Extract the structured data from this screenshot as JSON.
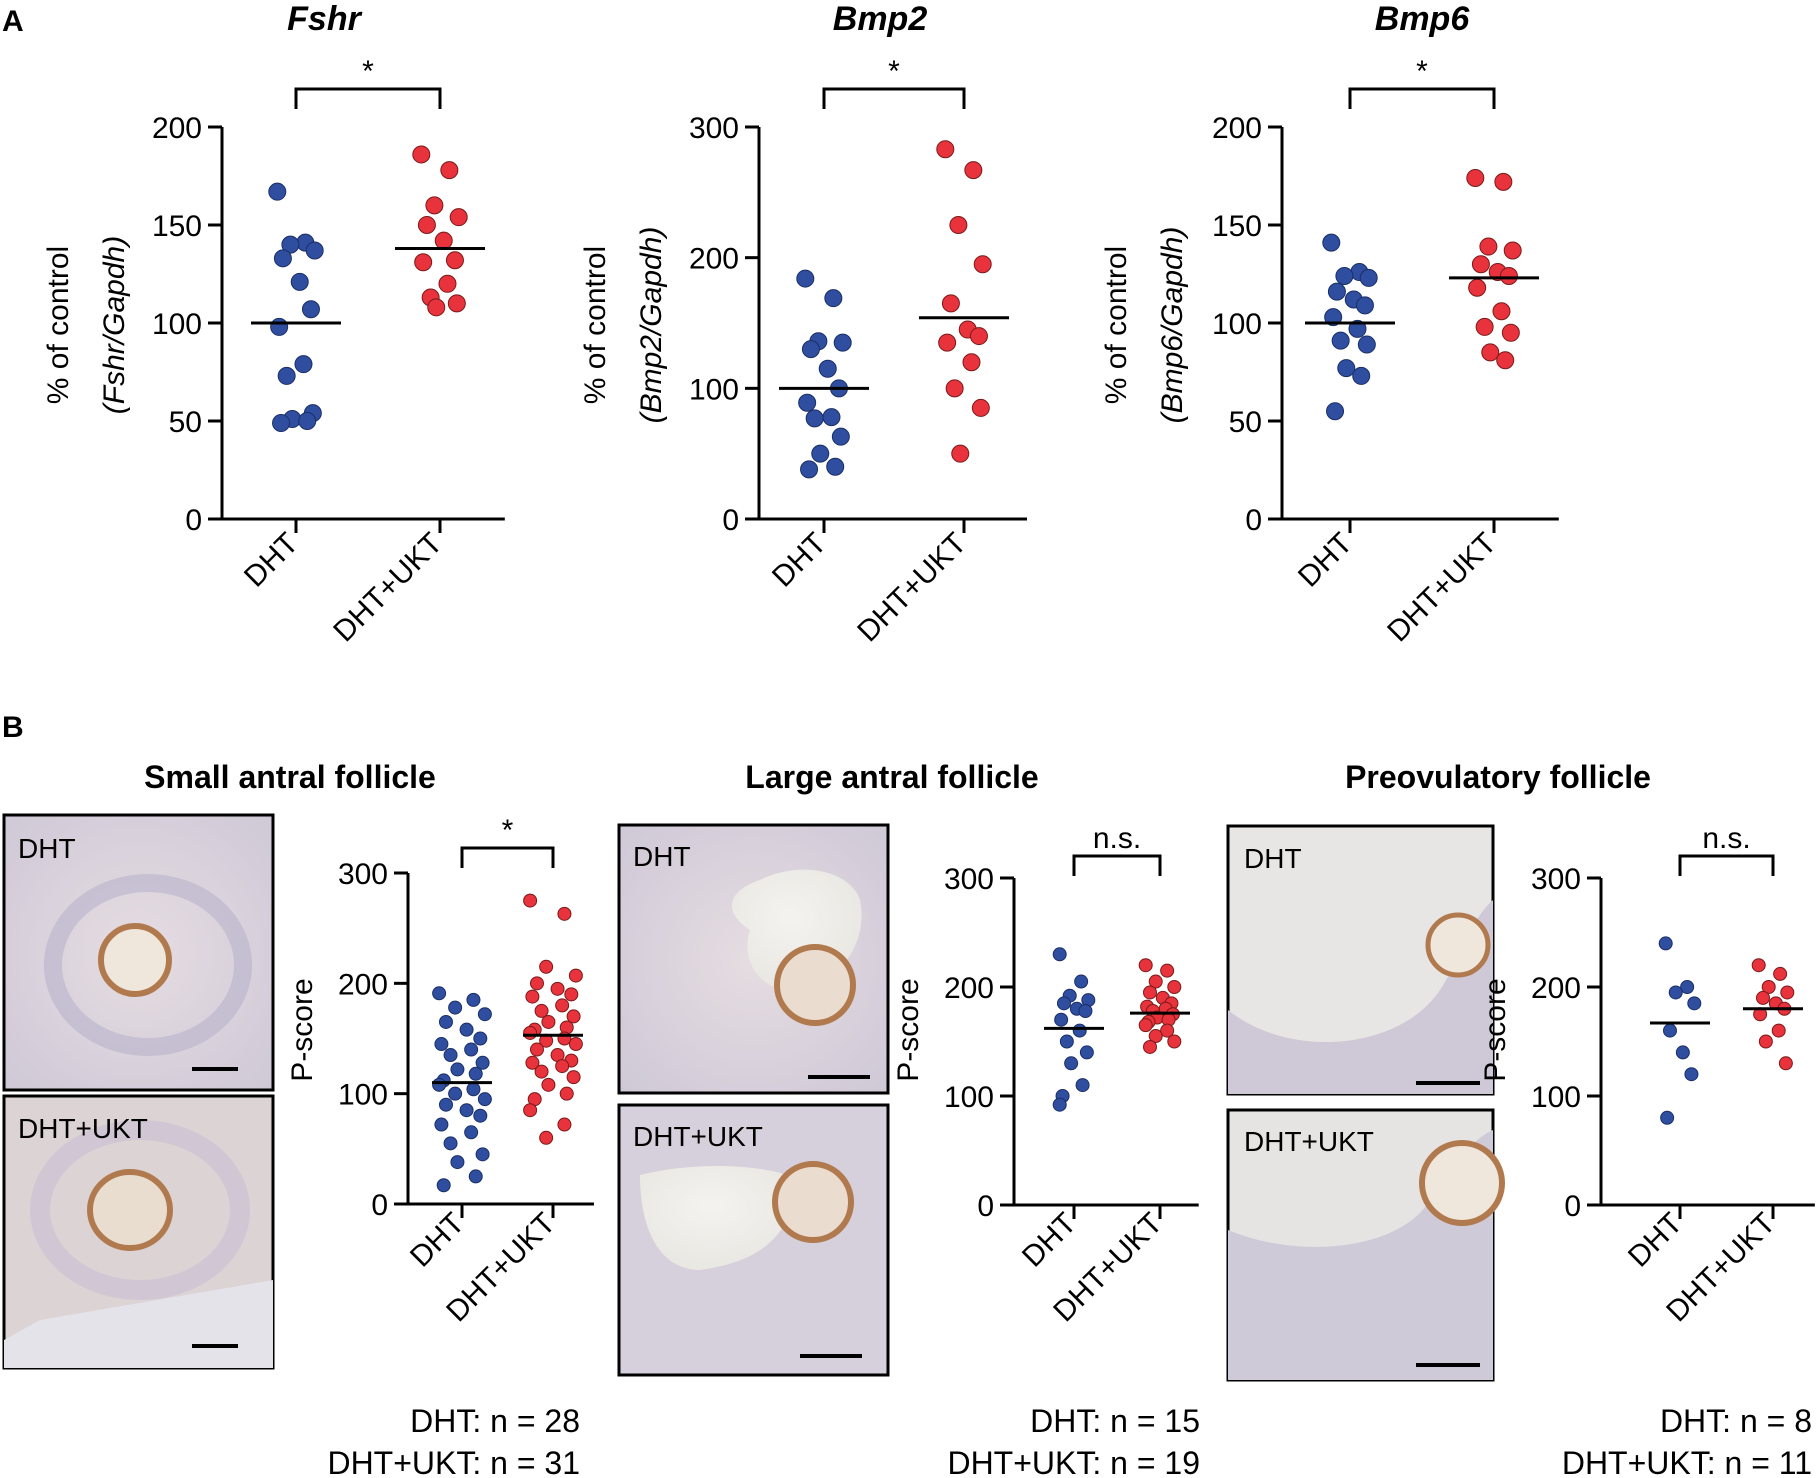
{
  "panel_labels": [
    "A",
    "B"
  ],
  "colors": {
    "dht": "#2f4ea0",
    "dht_ukt": "#e8323c"
  },
  "chart_data": [
    {
      "id": "fshr",
      "type": "scatter",
      "title": "Fshr",
      "ylabel_main": "% of control",
      "ylabel_gene": "(Fshr/Gapdh)",
      "categories": [
        "DHT",
        "DHT+UKT"
      ],
      "ylim": [
        0,
        200
      ],
      "yticks": [
        0,
        50,
        100,
        150,
        200
      ],
      "significance": "*",
      "series": [
        {
          "name": "DHT",
          "mean": 100,
          "values": [
            167,
            141,
            140,
            137,
            133,
            121,
            107,
            98,
            79,
            73,
            54,
            51,
            50,
            49
          ]
        },
        {
          "name": "DHT+UKT",
          "mean": 138,
          "values": [
            186,
            178,
            160,
            154,
            150,
            142,
            132,
            131,
            120,
            113,
            110,
            108
          ]
        }
      ]
    },
    {
      "id": "bmp2",
      "type": "scatter",
      "title": "Bmp2",
      "ylabel_main": "% of control",
      "ylabel_gene": "(Bmp2/Gapdh)",
      "categories": [
        "DHT",
        "DHT+UKT"
      ],
      "ylim": [
        0,
        300
      ],
      "yticks": [
        0,
        100,
        200,
        300
      ],
      "significance": "*",
      "series": [
        {
          "name": "DHT",
          "mean": 100,
          "values": [
            184,
            169,
            136,
            135,
            130,
            115,
            100,
            89,
            78,
            77,
            63,
            50,
            40,
            38
          ]
        },
        {
          "name": "DHT+UKT",
          "mean": 154,
          "values": [
            283,
            267,
            225,
            195,
            165,
            145,
            140,
            135,
            120,
            100,
            85,
            50
          ]
        }
      ]
    },
    {
      "id": "bmp6",
      "type": "scatter",
      "title": "Bmp6",
      "ylabel_main": "% of control",
      "ylabel_gene": "(Bmp6/Gapdh)",
      "categories": [
        "DHT",
        "DHT+UKT"
      ],
      "ylim": [
        0,
        200
      ],
      "yticks": [
        0,
        50,
        100,
        150,
        200
      ],
      "significance": "*",
      "series": [
        {
          "name": "DHT",
          "mean": 100,
          "values": [
            141,
            126,
            124,
            123,
            116,
            112,
            109,
            103,
            97,
            91,
            89,
            77,
            73,
            55
          ]
        },
        {
          "name": "DHT+UKT",
          "mean": 123,
          "values": [
            174,
            172,
            139,
            137,
            130,
            126,
            124,
            118,
            106,
            98,
            95,
            85,
            81
          ]
        }
      ]
    },
    {
      "id": "small",
      "type": "scatter",
      "title": "Small antral follicle",
      "ylabel_main": "P-score",
      "categories": [
        "DHT",
        "DHT+UKT"
      ],
      "ylim": [
        0,
        300
      ],
      "yticks": [
        0,
        100,
        200,
        300
      ],
      "significance": "*",
      "n_labels": [
        "DHT: n = 28",
        "DHT+UKT: n = 31"
      ],
      "series": [
        {
          "name": "DHT",
          "mean": 110,
          "values": [
            191,
            185,
            178,
            172,
            165,
            158,
            150,
            145,
            140,
            135,
            128,
            122,
            118,
            112,
            108,
            104,
            100,
            95,
            90,
            85,
            80,
            72,
            65,
            55,
            45,
            38,
            25,
            17
          ]
        },
        {
          "name": "DHT+UKT",
          "mean": 153,
          "values": [
            275,
            263,
            215,
            207,
            200,
            195,
            190,
            188,
            180,
            175,
            170,
            165,
            160,
            158,
            155,
            150,
            148,
            145,
            140,
            135,
            130,
            128,
            125,
            120,
            115,
            108,
            100,
            95,
            85,
            72,
            60
          ]
        }
      ]
    },
    {
      "id": "large",
      "type": "scatter",
      "title": "Large antral follicle",
      "ylabel_main": "P-score",
      "categories": [
        "DHT",
        "DHT+UKT"
      ],
      "ylim": [
        0,
        300
      ],
      "yticks": [
        0,
        100,
        200,
        300
      ],
      "significance": "n.s.",
      "n_labels": [
        "DHT: n = 15",
        "DHT+UKT: n = 19"
      ],
      "series": [
        {
          "name": "DHT",
          "mean": 162,
          "values": [
            230,
            205,
            192,
            188,
            185,
            180,
            178,
            170,
            160,
            150,
            140,
            130,
            110,
            100,
            92
          ]
        },
        {
          "name": "DHT+UKT",
          "mean": 176,
          "values": [
            220,
            215,
            205,
            200,
            195,
            190,
            185,
            182,
            180,
            178,
            175,
            172,
            170,
            168,
            165,
            160,
            155,
            150,
            145
          ]
        }
      ]
    },
    {
      "id": "preov",
      "type": "scatter",
      "title": "Preovulatory follicle",
      "ylabel_main": "P-score",
      "categories": [
        "DHT",
        "DHT+UKT"
      ],
      "ylim": [
        0,
        300
      ],
      "yticks": [
        0,
        100,
        200,
        300
      ],
      "significance": "n.s.",
      "n_labels": [
        "DHT: n = 8",
        "DHT+UKT: n = 11"
      ],
      "series": [
        {
          "name": "DHT",
          "mean": 167,
          "values": [
            240,
            200,
            195,
            185,
            160,
            140,
            120,
            80
          ]
        },
        {
          "name": "DHT+UKT",
          "mean": 180,
          "values": [
            220,
            212,
            200,
            195,
            190,
            185,
            180,
            175,
            160,
            150,
            130
          ]
        }
      ]
    }
  ],
  "micrographs": {
    "small_top": "DHT",
    "small_bottom": "DHT+UKT",
    "large_top": "DHT",
    "large_bottom": "DHT+UKT",
    "preov_top": "DHT",
    "preov_bottom": "DHT+UKT"
  }
}
